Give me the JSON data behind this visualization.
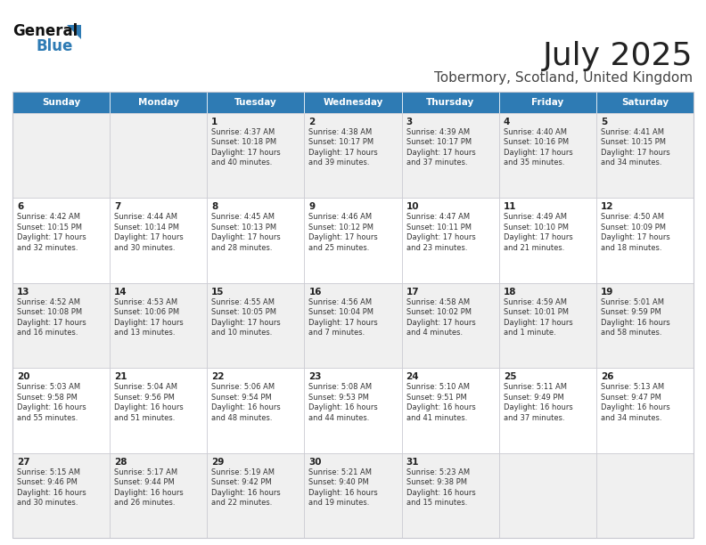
{
  "title": "July 2025",
  "subtitle": "Tobermory, Scotland, United Kingdom",
  "header_bg": "#2E7BB4",
  "header_fg": "#FFFFFF",
  "border_color": "#C8C8D0",
  "days_of_week": [
    "Sunday",
    "Monday",
    "Tuesday",
    "Wednesday",
    "Thursday",
    "Friday",
    "Saturday"
  ],
  "calendar": [
    [
      "",
      "",
      "1\nSunrise: 4:37 AM\nSunset: 10:18 PM\nDaylight: 17 hours\nand 40 minutes.",
      "2\nSunrise: 4:38 AM\nSunset: 10:17 PM\nDaylight: 17 hours\nand 39 minutes.",
      "3\nSunrise: 4:39 AM\nSunset: 10:17 PM\nDaylight: 17 hours\nand 37 minutes.",
      "4\nSunrise: 4:40 AM\nSunset: 10:16 PM\nDaylight: 17 hours\nand 35 minutes.",
      "5\nSunrise: 4:41 AM\nSunset: 10:15 PM\nDaylight: 17 hours\nand 34 minutes."
    ],
    [
      "6\nSunrise: 4:42 AM\nSunset: 10:15 PM\nDaylight: 17 hours\nand 32 minutes.",
      "7\nSunrise: 4:44 AM\nSunset: 10:14 PM\nDaylight: 17 hours\nand 30 minutes.",
      "8\nSunrise: 4:45 AM\nSunset: 10:13 PM\nDaylight: 17 hours\nand 28 minutes.",
      "9\nSunrise: 4:46 AM\nSunset: 10:12 PM\nDaylight: 17 hours\nand 25 minutes.",
      "10\nSunrise: 4:47 AM\nSunset: 10:11 PM\nDaylight: 17 hours\nand 23 minutes.",
      "11\nSunrise: 4:49 AM\nSunset: 10:10 PM\nDaylight: 17 hours\nand 21 minutes.",
      "12\nSunrise: 4:50 AM\nSunset: 10:09 PM\nDaylight: 17 hours\nand 18 minutes."
    ],
    [
      "13\nSunrise: 4:52 AM\nSunset: 10:08 PM\nDaylight: 17 hours\nand 16 minutes.",
      "14\nSunrise: 4:53 AM\nSunset: 10:06 PM\nDaylight: 17 hours\nand 13 minutes.",
      "15\nSunrise: 4:55 AM\nSunset: 10:05 PM\nDaylight: 17 hours\nand 10 minutes.",
      "16\nSunrise: 4:56 AM\nSunset: 10:04 PM\nDaylight: 17 hours\nand 7 minutes.",
      "17\nSunrise: 4:58 AM\nSunset: 10:02 PM\nDaylight: 17 hours\nand 4 minutes.",
      "18\nSunrise: 4:59 AM\nSunset: 10:01 PM\nDaylight: 17 hours\nand 1 minute.",
      "19\nSunrise: 5:01 AM\nSunset: 9:59 PM\nDaylight: 16 hours\nand 58 minutes."
    ],
    [
      "20\nSunrise: 5:03 AM\nSunset: 9:58 PM\nDaylight: 16 hours\nand 55 minutes.",
      "21\nSunrise: 5:04 AM\nSunset: 9:56 PM\nDaylight: 16 hours\nand 51 minutes.",
      "22\nSunrise: 5:06 AM\nSunset: 9:54 PM\nDaylight: 16 hours\nand 48 minutes.",
      "23\nSunrise: 5:08 AM\nSunset: 9:53 PM\nDaylight: 16 hours\nand 44 minutes.",
      "24\nSunrise: 5:10 AM\nSunset: 9:51 PM\nDaylight: 16 hours\nand 41 minutes.",
      "25\nSunrise: 5:11 AM\nSunset: 9:49 PM\nDaylight: 16 hours\nand 37 minutes.",
      "26\nSunrise: 5:13 AM\nSunset: 9:47 PM\nDaylight: 16 hours\nand 34 minutes."
    ],
    [
      "27\nSunrise: 5:15 AM\nSunset: 9:46 PM\nDaylight: 16 hours\nand 30 minutes.",
      "28\nSunrise: 5:17 AM\nSunset: 9:44 PM\nDaylight: 16 hours\nand 26 minutes.",
      "29\nSunrise: 5:19 AM\nSunset: 9:42 PM\nDaylight: 16 hours\nand 22 minutes.",
      "30\nSunrise: 5:21 AM\nSunset: 9:40 PM\nDaylight: 16 hours\nand 19 minutes.",
      "31\nSunrise: 5:23 AM\nSunset: 9:38 PM\nDaylight: 16 hours\nand 15 minutes.",
      "",
      ""
    ]
  ],
  "logo_general_color": "#111111",
  "logo_blue_color": "#2E7BB4",
  "logo_triangle_color": "#2E7BB4",
  "title_color": "#222222",
  "subtitle_color": "#444444"
}
